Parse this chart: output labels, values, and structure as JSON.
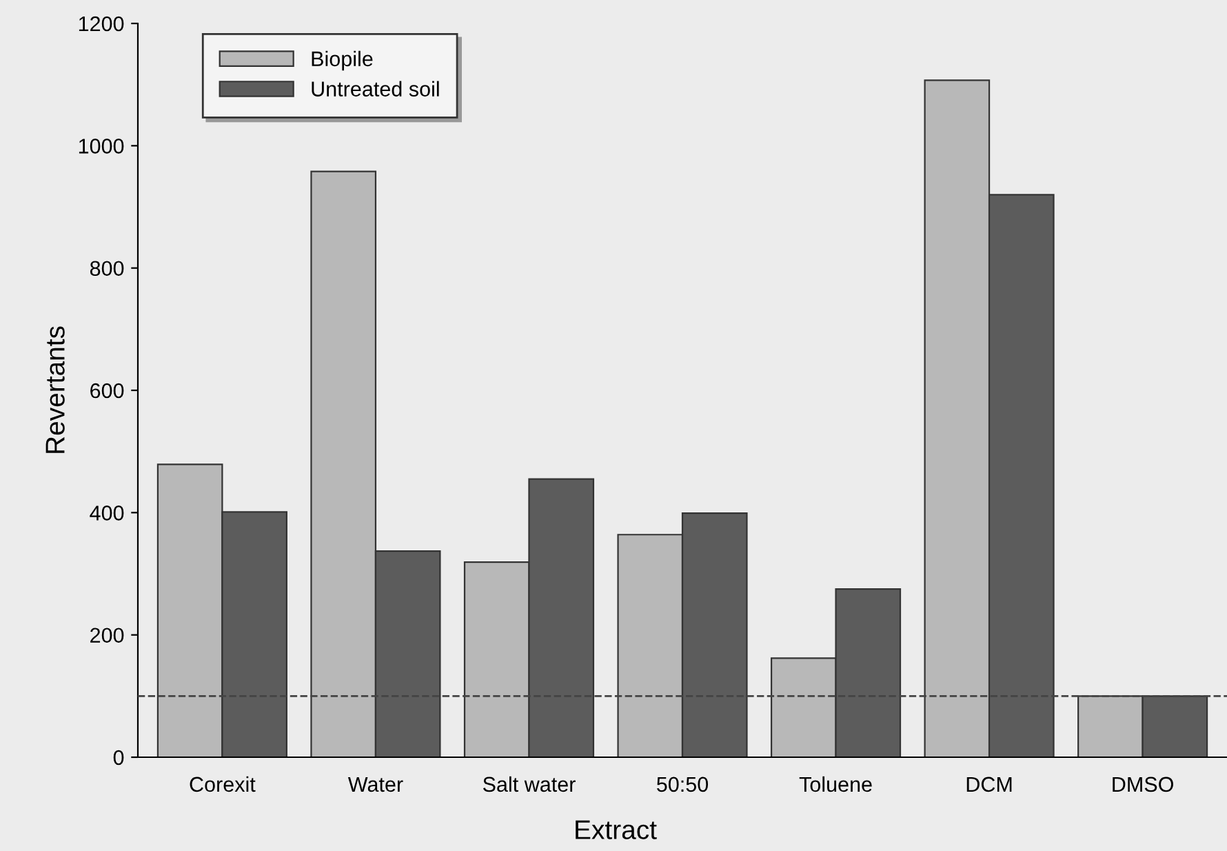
{
  "chart_data": {
    "type": "bar",
    "xlabel": "Extract",
    "ylabel": "Revertants",
    "categories": [
      "Corexit",
      "Water",
      "Salt water",
      "50:50",
      "Toluene",
      "DCM",
      "DMSO"
    ],
    "series": [
      {
        "name": "Biopile",
        "color": "#b8b8b8",
        "values": [
          479,
          958,
          319,
          364,
          162,
          1107,
          100
        ]
      },
      {
        "name": "Untreated soil",
        "color": "#5c5c5c",
        "values": [
          401,
          337,
          455,
          399,
          275,
          920,
          100
        ]
      }
    ],
    "ylim": [
      0,
      1200
    ],
    "yticks": [
      0,
      200,
      400,
      600,
      800,
      1000,
      1200
    ],
    "ref_lines": [
      {
        "axis": "y",
        "value": 100,
        "line_style": "dashed",
        "color": "#444444"
      }
    ],
    "grid": false,
    "legend": "top left"
  }
}
